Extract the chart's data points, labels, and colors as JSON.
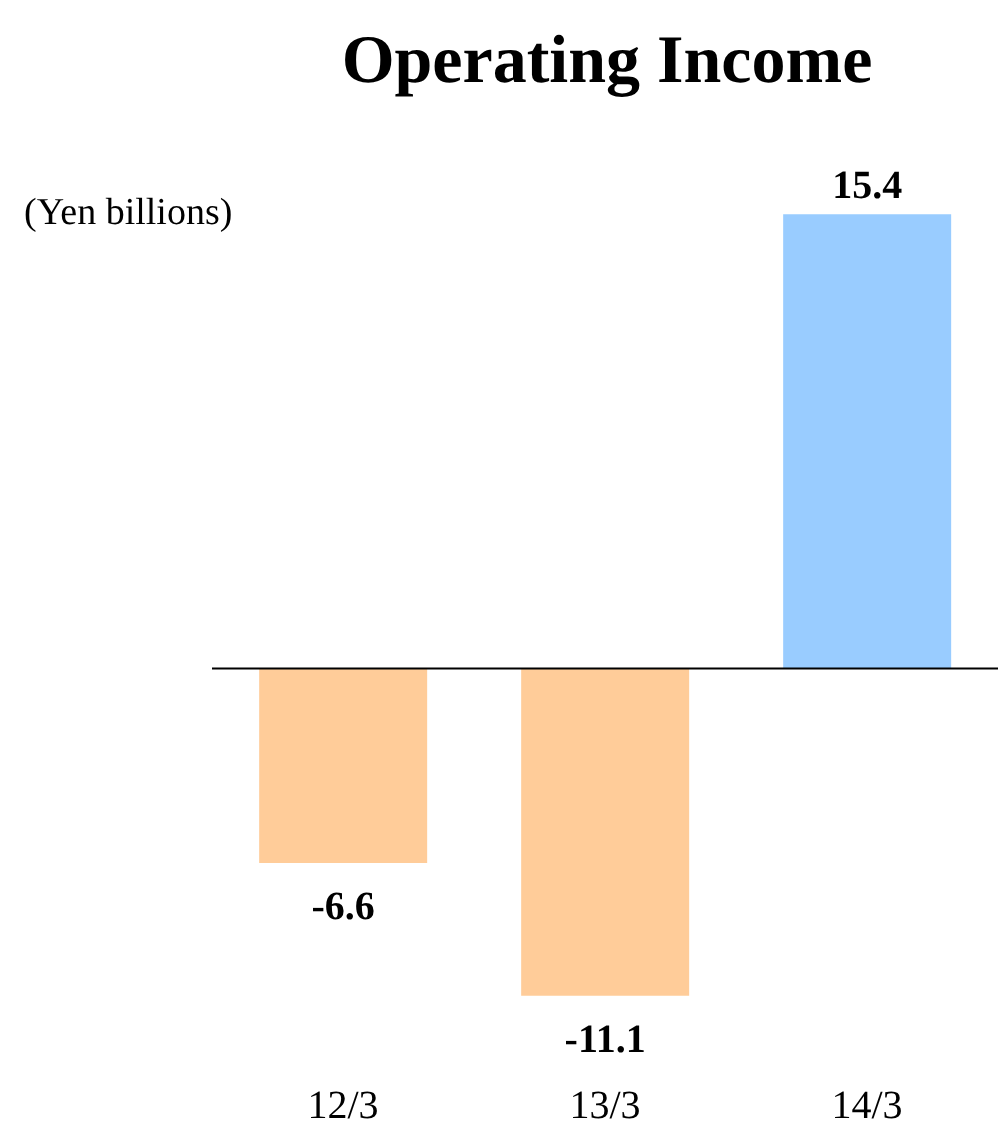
{
  "chart_data": {
    "type": "bar",
    "title": "Operating Income",
    "ylabel": "(Yen billions)",
    "categories": [
      "12/3",
      "13/3",
      "14/3"
    ],
    "values": [
      -6.6,
      -11.1,
      15.4
    ],
    "colors": [
      "#ffcc99",
      "#ffcc99",
      "#99ccff"
    ],
    "data_labels": true
  }
}
